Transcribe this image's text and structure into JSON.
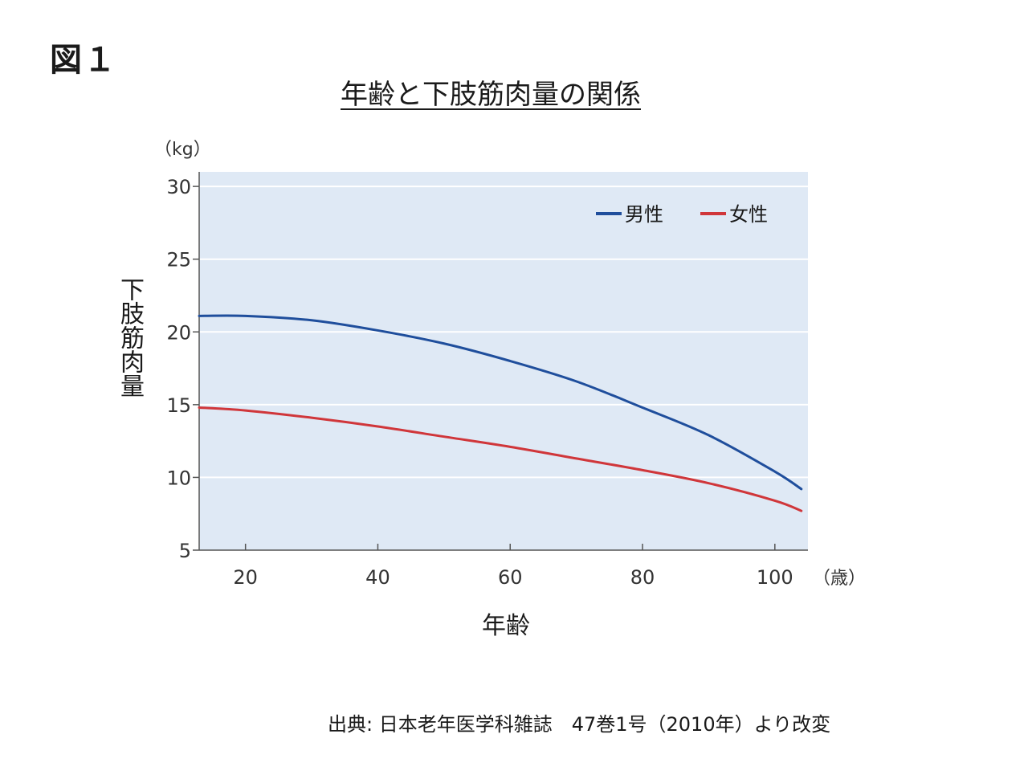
{
  "figure_label": "図１",
  "source_note": "出典: 日本老年医学科雑誌　47巻1号（2010年）より改変",
  "colors": {
    "plot_background": "#dfe9f5",
    "gridline": "#ffffff",
    "male": "#1f4e9c",
    "female": "#d0363a",
    "axis": "#555555"
  },
  "chart_data": {
    "type": "line",
    "title": "年齢と下肢筋肉量の関係",
    "xlabel": "年齢",
    "xunit": "（歳）",
    "ylabel": "下肢筋肉量",
    "yunit": "（kg）",
    "xlim": [
      13,
      105
    ],
    "ylim": [
      5,
      31
    ],
    "xticks": [
      20,
      40,
      60,
      80,
      100
    ],
    "yticks": [
      5,
      10,
      15,
      20,
      25,
      30
    ],
    "grid": true,
    "legend_position": "top-right",
    "series": [
      {
        "name": "男性",
        "color": "#1f4e9c",
        "x": [
          13,
          20,
          30,
          40,
          50,
          60,
          70,
          80,
          90,
          100,
          104
        ],
        "y": [
          21.1,
          21.1,
          20.8,
          20.1,
          19.2,
          18.0,
          16.6,
          14.8,
          12.9,
          10.4,
          9.2
        ]
      },
      {
        "name": "女性",
        "color": "#d0363a",
        "x": [
          13,
          20,
          30,
          40,
          50,
          60,
          70,
          80,
          90,
          100,
          104
        ],
        "y": [
          14.8,
          14.6,
          14.1,
          13.5,
          12.8,
          12.1,
          11.3,
          10.5,
          9.6,
          8.4,
          7.7
        ]
      }
    ]
  }
}
